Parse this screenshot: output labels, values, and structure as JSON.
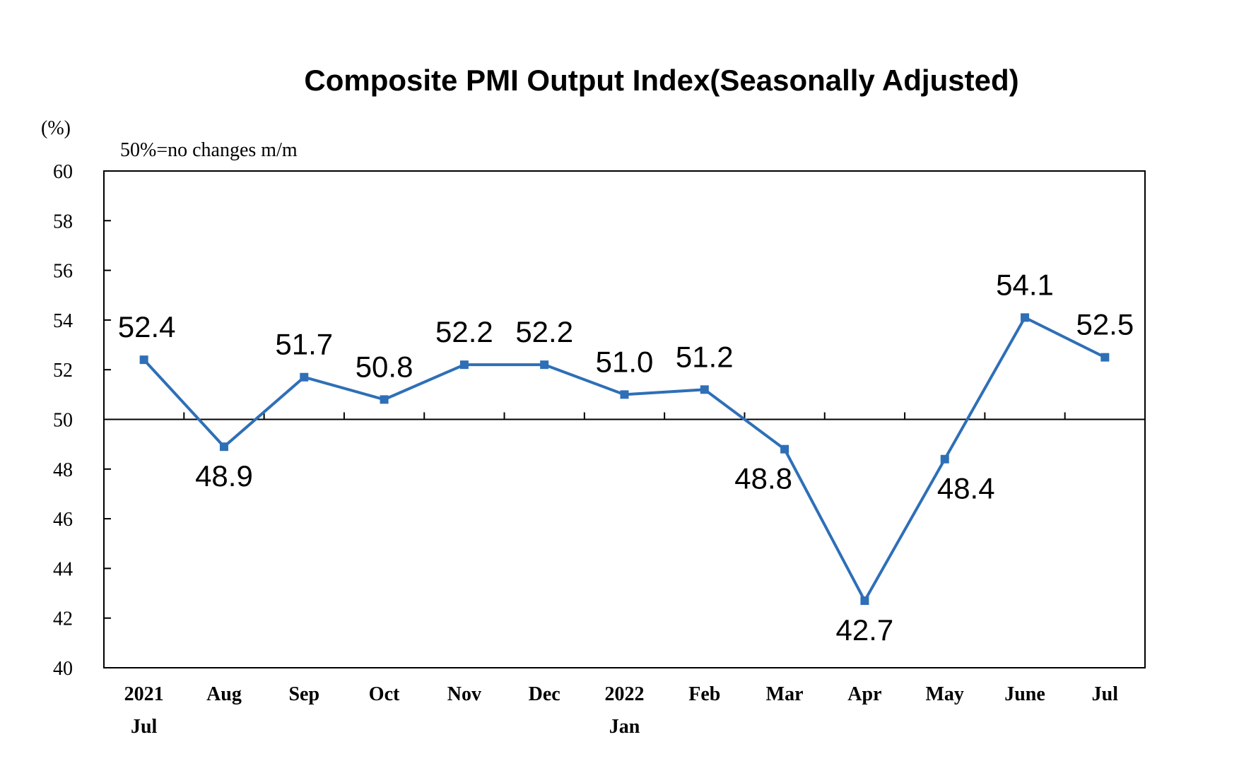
{
  "chart_data": {
    "type": "line",
    "title": "Composite PMI Output Index(Seasonally Adjusted)",
    "unit_label": "(%)",
    "note": "50%=no changes m/m",
    "categories": [
      [
        "2021",
        "Jul"
      ],
      [
        "Aug"
      ],
      [
        "Sep"
      ],
      [
        "Oct"
      ],
      [
        "Nov"
      ],
      [
        "Dec"
      ],
      [
        "2022",
        "Jan"
      ],
      [
        "Feb"
      ],
      [
        "Mar"
      ],
      [
        "Apr"
      ],
      [
        "May"
      ],
      [
        "June"
      ],
      [
        "Jul"
      ]
    ],
    "values": [
      52.4,
      48.9,
      51.7,
      50.8,
      52.2,
      52.2,
      51.0,
      51.2,
      48.8,
      42.7,
      48.4,
      54.1,
      52.5
    ],
    "data_labels": [
      "52.4",
      "48.9",
      "51.7",
      "50.8",
      "52.2",
      "52.2",
      "51.0",
      "51.2",
      "48.8",
      "42.7",
      "48.4",
      "54.1",
      "52.5"
    ],
    "ylim": [
      40,
      60
    ],
    "yticks": [
      "40",
      "42",
      "44",
      "46",
      "48",
      "50",
      "52",
      "54",
      "56",
      "58",
      "60"
    ],
    "reference_line": 50,
    "grid": false,
    "legend": "none",
    "colors": {
      "series": "#2E6FB7",
      "marker": "#2E6FB7",
      "axis": "#000000"
    }
  }
}
